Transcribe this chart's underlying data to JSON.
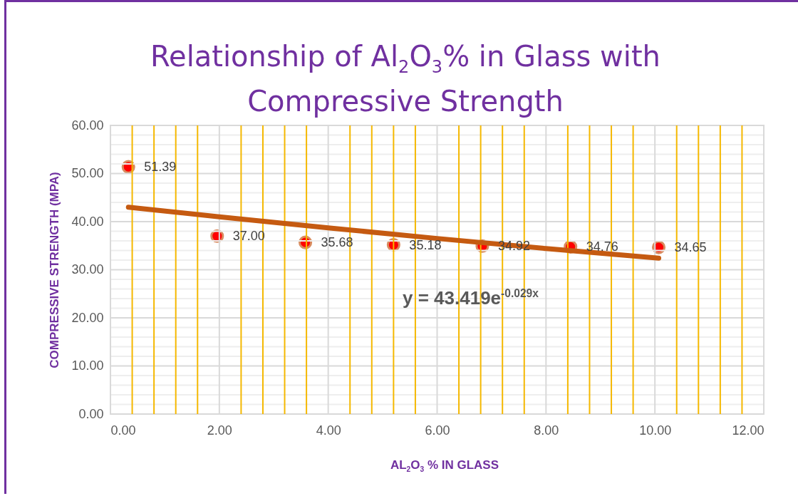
{
  "chart_data": {
    "type": "scatter",
    "title": "Relationship of Al$_{2}$O$_{3}$% in Glass with Compressive Strength",
    "xlabel": "AL$_{2}$O$_{3}$ % IN GLASS",
    "ylabel": "COMPRESSIVE STRENGTH (MPA)",
    "annotations": [
      "y = 43.419e$^{-0.029x}$"
    ],
    "series": [
      {
        "type": "scatter",
        "marker": "circle",
        "color": "#ff0000",
        "x": [
          0.33,
          1.96,
          3.58,
          5.2,
          6.83,
          8.45,
          10.07
        ],
        "values": [
          51.39,
          37.0,
          35.68,
          35.18,
          34.92,
          34.76,
          34.65
        ],
        "value_labels": [
          "51.39",
          "37.00",
          "35.68",
          "35.18",
          "34.92",
          "34.76",
          "34.65"
        ]
      },
      {
        "type": "line",
        "color": "#c55a11",
        "x": [
          0.33,
          2,
          4,
          6,
          8,
          10.07
        ],
        "values": [
          43.0,
          41.0,
          38.7,
          36.5,
          34.4,
          32.4
        ]
      }
    ],
    "grid": true,
    "xlim": [
      0,
      12
    ],
    "ylim": [
      0,
      60
    ],
    "xticks": [
      {
        "value": 0,
        "label": "0.00"
      },
      {
        "value": 0.4,
        "label": null
      },
      {
        "value": 0.8,
        "label": null
      },
      {
        "value": 1.2,
        "label": null
      },
      {
        "value": 1.6,
        "label": null
      },
      {
        "value": 2,
        "label": "2.00"
      },
      {
        "value": 2.4,
        "label": null
      },
      {
        "value": 2.8,
        "label": null
      },
      {
        "value": 3.2,
        "label": null
      },
      {
        "value": 3.6,
        "label": null
      },
      {
        "value": 4,
        "label": "4.00"
      },
      {
        "value": 4.4,
        "label": null
      },
      {
        "value": 4.8,
        "label": null
      },
      {
        "value": 5.2,
        "label": null
      },
      {
        "value": 5.6,
        "label": null
      },
      {
        "value": 6,
        "label": "6.00"
      },
      {
        "value": 6.4,
        "label": null
      },
      {
        "value": 6.8,
        "label": null
      },
      {
        "value": 7.2,
        "label": null
      },
      {
        "value": 7.6,
        "label": null
      },
      {
        "value": 8,
        "label": "8.00"
      },
      {
        "value": 8.4,
        "label": null
      },
      {
        "value": 8.8,
        "label": null
      },
      {
        "value": 9.2,
        "label": null
      },
      {
        "value": 9.6,
        "label": null
      },
      {
        "value": 10,
        "label": "10.00"
      },
      {
        "value": 10.4,
        "label": null
      },
      {
        "value": 10.8,
        "label": null
      },
      {
        "value": 11.2,
        "label": null
      },
      {
        "value": 11.6,
        "label": null
      },
      {
        "value": 12,
        "label": "12.00"
      }
    ],
    "yticks": [
      {
        "value": 0,
        "label": "0.00"
      },
      {
        "value": 2,
        "label": null
      },
      {
        "value": 4,
        "label": null
      },
      {
        "value": 6,
        "label": null
      },
      {
        "value": 8,
        "label": null
      },
      {
        "value": 10,
        "label": "10.00"
      },
      {
        "value": 12,
        "label": null
      },
      {
        "value": 14,
        "label": null
      },
      {
        "value": 16,
        "label": null
      },
      {
        "value": 18,
        "label": null
      },
      {
        "value": 20,
        "label": "20.00"
      },
      {
        "value": 22,
        "label": null
      },
      {
        "value": 24,
        "label": null
      },
      {
        "value": 26,
        "label": null
      },
      {
        "value": 28,
        "label": null
      },
      {
        "value": 30,
        "label": "30.00"
      },
      {
        "value": 32,
        "label": null
      },
      {
        "value": 34,
        "label": null
      },
      {
        "value": 36,
        "label": null
      },
      {
        "value": 38,
        "label": null
      },
      {
        "value": 40,
        "label": "40.00"
      },
      {
        "value": 42,
        "label": null
      },
      {
        "value": 44,
        "label": null
      },
      {
        "value": 46,
        "label": null
      },
      {
        "value": 48,
        "label": null
      },
      {
        "value": 50,
        "label": "50.00"
      },
      {
        "value": 52,
        "label": null
      },
      {
        "value": 54,
        "label": null
      },
      {
        "value": 56,
        "label": null
      },
      {
        "value": 58,
        "label": null
      },
      {
        "value": 60,
        "label": "60.00"
      }
    ]
  }
}
